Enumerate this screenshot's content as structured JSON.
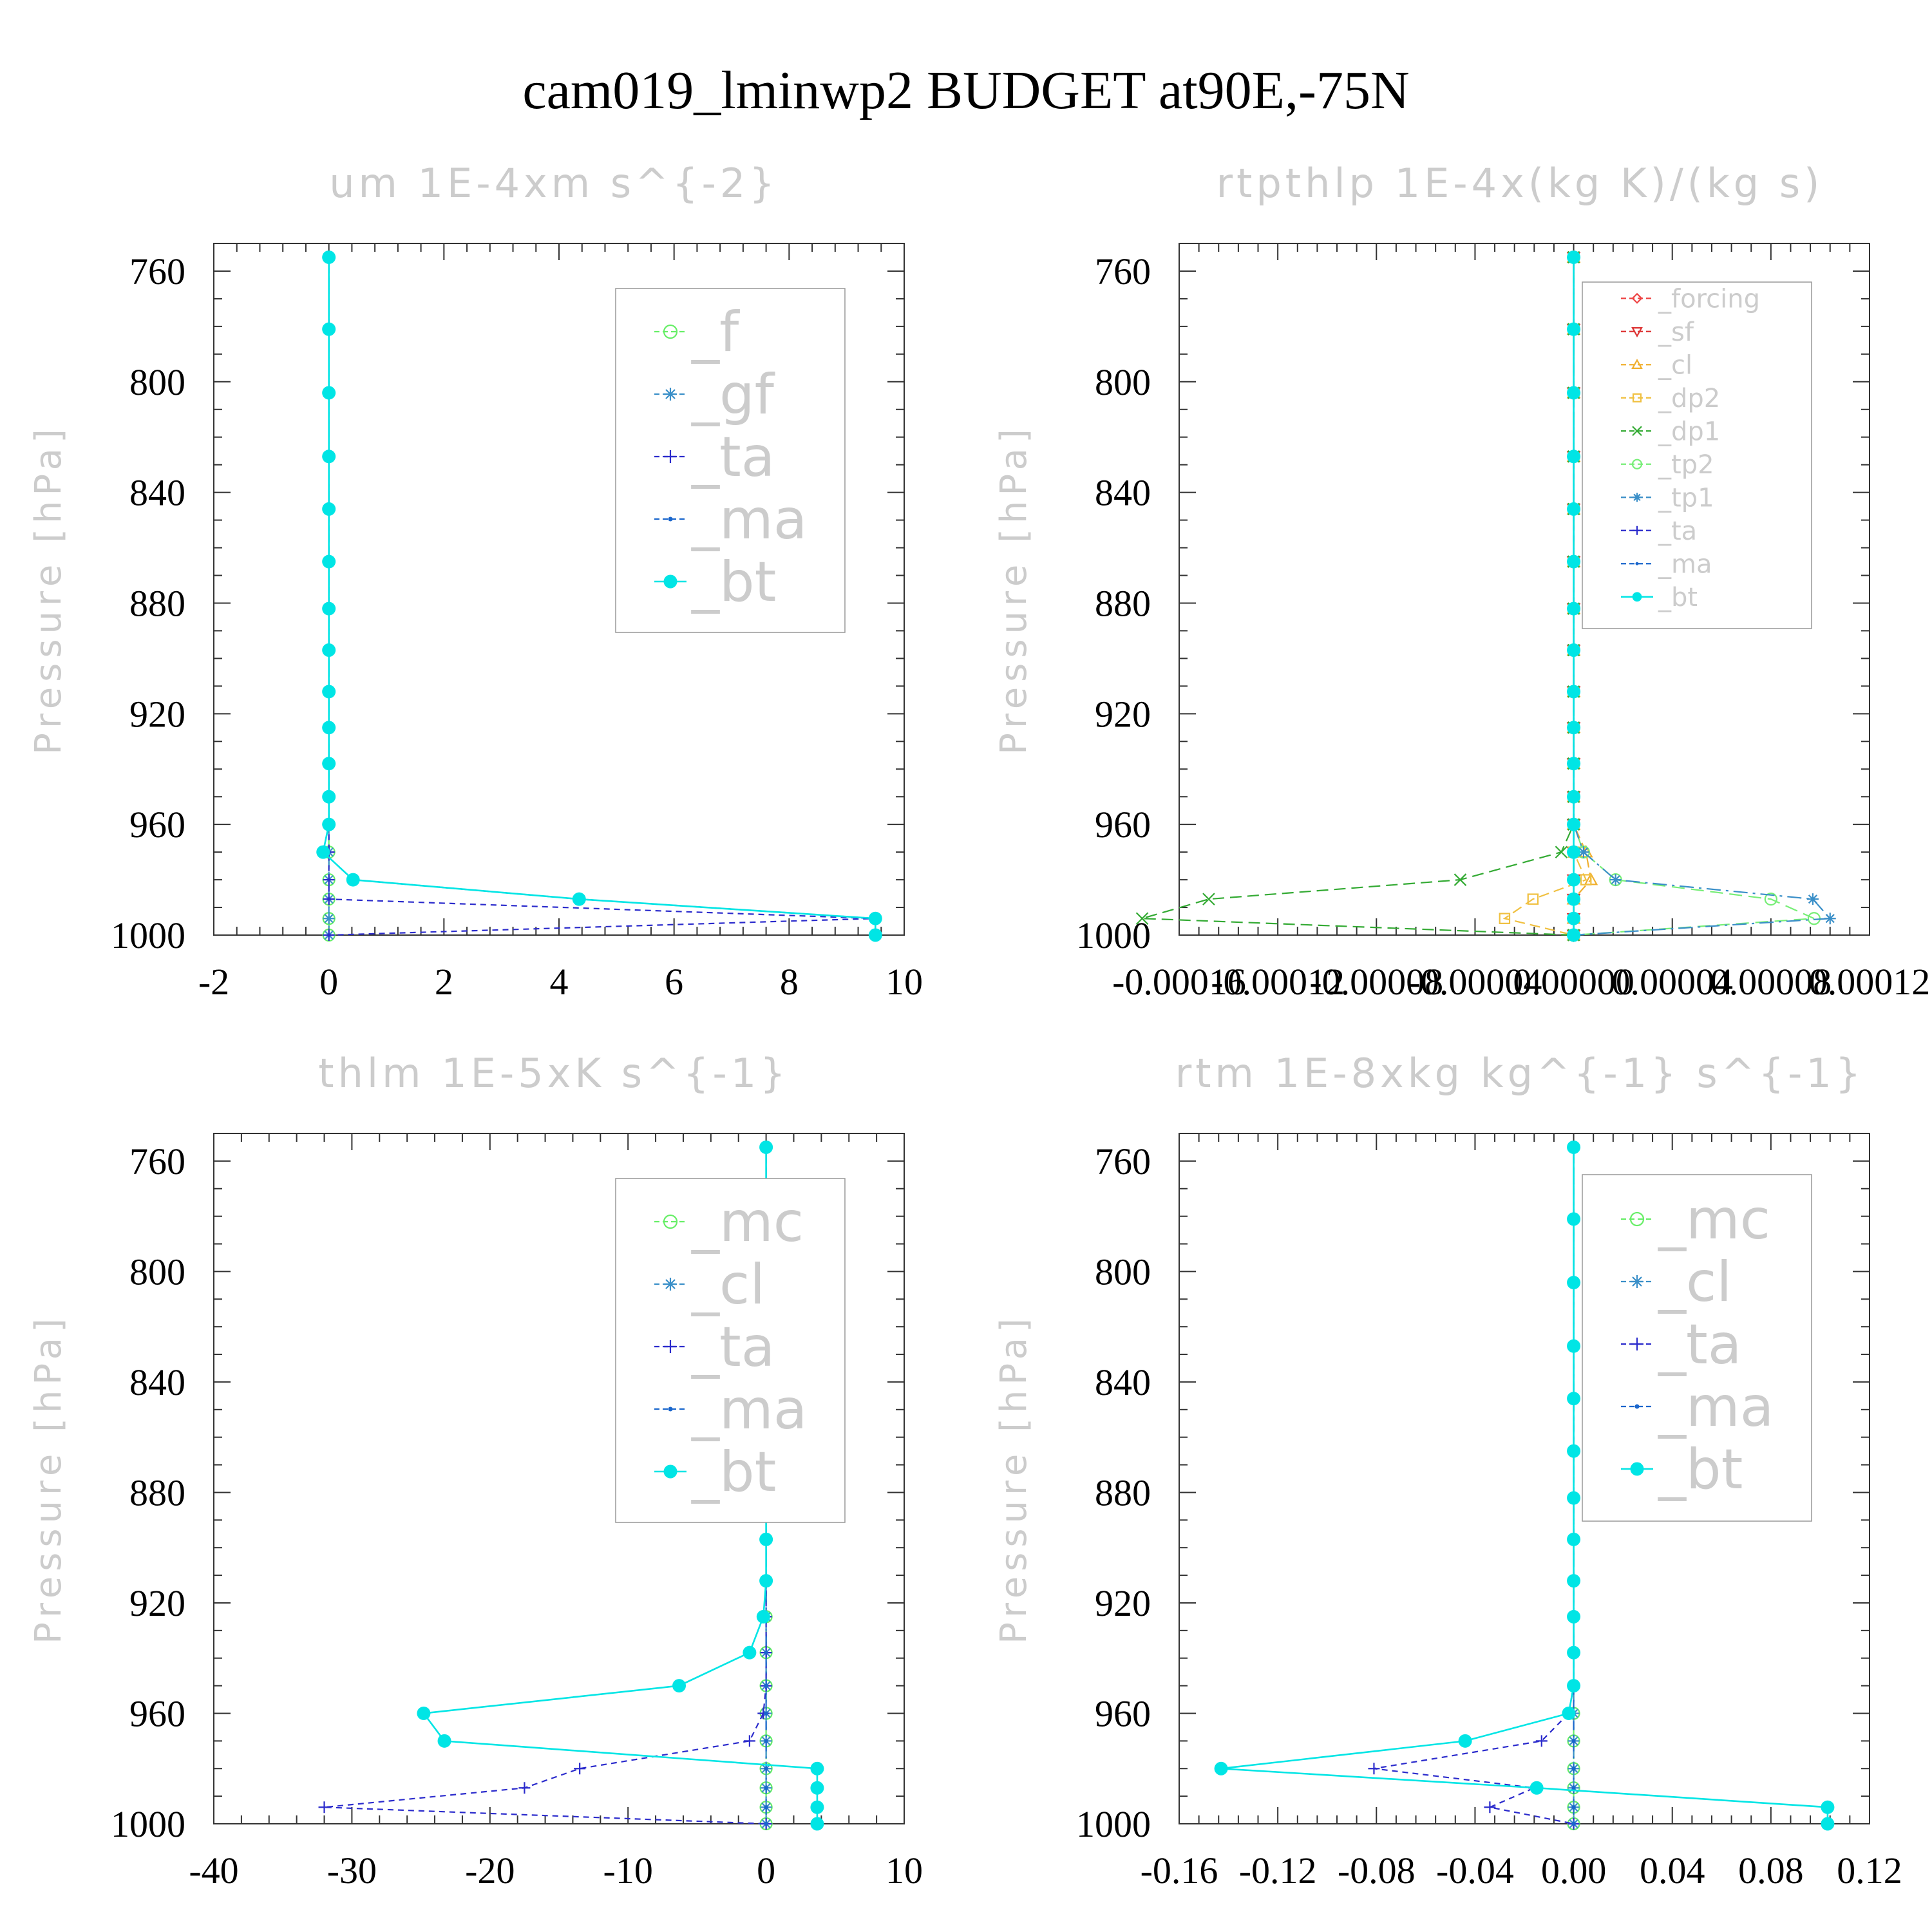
{
  "figure": {
    "title": "cam019_lminwp2  BUDGET at90E,-75N"
  },
  "chart_data": [
    {
      "type": "line",
      "title": "um   1E-4xm s^{-2}",
      "ylabel": "Pressure [hPa]",
      "xlabel": "",
      "xlim": [
        -2,
        10
      ],
      "ylim": [
        750,
        1000
      ],
      "y_inverted": true,
      "xticks": [
        "-2",
        "0",
        "2",
        "4",
        "6",
        "8",
        "10"
      ],
      "yticks": [
        "760",
        "800",
        "840",
        "880",
        "920",
        "960",
        "1000"
      ],
      "legend": "top-right",
      "levels": [
        755,
        781,
        804,
        827,
        846,
        865,
        882,
        897,
        912,
        925,
        938,
        950,
        960,
        970,
        980,
        987,
        994,
        1000
      ],
      "series": [
        {
          "name": "_f",
          "color": "#66ee66",
          "marker": "circle-open",
          "values": [
            0,
            0,
            0,
            0,
            0,
            0,
            0,
            0,
            0,
            0,
            0,
            0,
            0,
            0,
            0,
            0,
            0,
            0
          ]
        },
        {
          "name": "_gf",
          "color": "#3a8fc8",
          "marker": "star",
          "values": [
            0,
            0,
            0,
            0,
            0,
            0,
            0,
            0,
            0,
            0,
            0,
            0,
            0,
            0,
            0,
            0,
            0,
            0
          ]
        },
        {
          "name": "_ta",
          "color": "#2b2bcc",
          "marker": "plus",
          "values": [
            0,
            0,
            0,
            0,
            0,
            0,
            0,
            0,
            0,
            0,
            0,
            0,
            0,
            0,
            0,
            0,
            9.5,
            0
          ]
        },
        {
          "name": "_ma",
          "color": "#1a66cc",
          "marker": "dot",
          "values": [
            0,
            0,
            0,
            0,
            0,
            0,
            0,
            0,
            0,
            0,
            0,
            0,
            0,
            -0.1,
            0.42,
            4.35,
            9.5,
            9.5
          ]
        },
        {
          "name": "_bt",
          "color": "#00e5e5",
          "marker": "filled-circle",
          "values": [
            0,
            0,
            0,
            0,
            0,
            0,
            0,
            0,
            0,
            0,
            0,
            0,
            0,
            -0.1,
            0.42,
            4.35,
            9.5,
            9.5
          ]
        }
      ]
    },
    {
      "type": "line",
      "title": "rtpthlp   1E-4x(kg K)/(kg s)",
      "ylabel": "Pressure [hPa]",
      "xlabel": "",
      "xlim": [
        -0.00016,
        0.00012
      ],
      "ylim": [
        750,
        1000
      ],
      "y_inverted": true,
      "xticks": [
        "-0.00016",
        "-0.00012",
        "-0.00008",
        "-0.00004",
        "0.00000",
        "0.00004",
        "0.00008",
        "0.00012"
      ],
      "yticks": [
        "760",
        "800",
        "840",
        "880",
        "920",
        "960",
        "1000"
      ],
      "legend": "top-right",
      "levels": [
        755,
        781,
        804,
        827,
        846,
        865,
        882,
        897,
        912,
        925,
        938,
        950,
        960,
        970,
        980,
        987,
        994,
        1000
      ],
      "series": [
        {
          "name": "_forcing",
          "color": "#ee4444",
          "marker": "diamond-open",
          "values": [
            0,
            0,
            0,
            0,
            0,
            0,
            0,
            0,
            0,
            0,
            0,
            0,
            0,
            0,
            0,
            0,
            0,
            0
          ]
        },
        {
          "name": "_sf",
          "color": "#dd3333",
          "marker": "triangle-down",
          "values": [
            0,
            0,
            0,
            0,
            0,
            0,
            0,
            0,
            0,
            0,
            0,
            0,
            0,
            0,
            0,
            0,
            0,
            0
          ]
        },
        {
          "name": "_cl",
          "color": "#f0b030",
          "marker": "triangle-up",
          "values": [
            0,
            0,
            0,
            0,
            0,
            0,
            0,
            0,
            0,
            0,
            0,
            0,
            0,
            5e-06,
            7e-06,
            0,
            0,
            0
          ]
        },
        {
          "name": "_dp2",
          "color": "#f0c040",
          "marker": "square-open",
          "values": [
            0,
            0,
            0,
            0,
            0,
            0,
            0,
            0,
            0,
            0,
            0,
            0,
            0,
            0,
            5e-06,
            -1.65e-05,
            -2.8e-05,
            0
          ]
        },
        {
          "name": "_dp1",
          "color": "#33aa33",
          "marker": "x",
          "values": [
            0,
            0,
            0,
            0,
            0,
            0,
            0,
            0,
            0,
            0,
            0,
            0,
            0,
            -5e-06,
            -4.6e-05,
            -0.000148,
            -0.000175,
            0
          ]
        },
        {
          "name": "_tp2",
          "color": "#77ee77",
          "marker": "circle-open",
          "values": [
            0,
            0,
            0,
            0,
            0,
            0,
            0,
            0,
            0,
            0,
            0,
            0,
            0,
            4e-06,
            1.7e-05,
            8e-05,
            9.75e-05,
            0
          ]
        },
        {
          "name": "_tp1",
          "color": "#3a8fc8",
          "marker": "star",
          "values": [
            0,
            0,
            0,
            0,
            0,
            0,
            0,
            0,
            0,
            0,
            0,
            0,
            0,
            4e-06,
            1.7e-05,
            9.7e-05,
            0.000104,
            0
          ]
        },
        {
          "name": "_ta",
          "color": "#2b2bcc",
          "marker": "plus",
          "values": [
            0,
            0,
            0,
            0,
            0,
            0,
            0,
            0,
            0,
            0,
            0,
            0,
            0,
            0,
            0,
            0,
            0,
            0
          ]
        },
        {
          "name": "_ma",
          "color": "#1a66cc",
          "marker": "dot",
          "values": [
            0,
            0,
            0,
            0,
            0,
            0,
            0,
            0,
            0,
            0,
            0,
            0,
            0,
            0,
            0,
            0,
            0,
            0
          ]
        },
        {
          "name": "_bt",
          "color": "#00e5e5",
          "marker": "filled-circle",
          "values": [
            0,
            0,
            0,
            0,
            0,
            0,
            0,
            0,
            0,
            0,
            0,
            0,
            0,
            0,
            0,
            0,
            0,
            0
          ]
        }
      ]
    },
    {
      "type": "line",
      "title": "thlm   1E-5xK s^{-1}",
      "ylabel": "Pressure [hPa]",
      "xlabel": "",
      "xlim": [
        -40,
        10
      ],
      "ylim": [
        750,
        1000
      ],
      "y_inverted": true,
      "xticks": [
        "-40",
        "-30",
        "-20",
        "-10",
        "0",
        "10"
      ],
      "yticks": [
        "760",
        "800",
        "840",
        "880",
        "920",
        "960",
        "1000"
      ],
      "legend": "top-right",
      "levels": [
        755,
        781,
        804,
        827,
        846,
        865,
        882,
        897,
        912,
        925,
        938,
        950,
        960,
        970,
        980,
        987,
        994,
        1000
      ],
      "series": [
        {
          "name": "_mc",
          "color": "#66ee66",
          "marker": "circle-open",
          "values": [
            0,
            0,
            0,
            0,
            0,
            0,
            0,
            0,
            0,
            0,
            0,
            0,
            0,
            0,
            0,
            0,
            0,
            0
          ]
        },
        {
          "name": "_cl",
          "color": "#3a8fc8",
          "marker": "star",
          "values": [
            0,
            0,
            0,
            0,
            0,
            0,
            0,
            0,
            0,
            0,
            0,
            0,
            0,
            0,
            0,
            0,
            0,
            0
          ]
        },
        {
          "name": "_ta",
          "color": "#2b2bcc",
          "marker": "plus",
          "values": [
            0,
            0,
            0,
            0,
            0,
            0,
            0,
            0,
            0,
            0,
            0,
            0,
            -0.2,
            -1.2,
            -13.5,
            -17.5,
            -32,
            0
          ]
        },
        {
          "name": "_ma",
          "color": "#1a66cc",
          "marker": "dot",
          "values": [
            0,
            0,
            0,
            0,
            0,
            0,
            0,
            0,
            0,
            0,
            0,
            0,
            0,
            0,
            0,
            0,
            0,
            0
          ]
        },
        {
          "name": "_bt",
          "color": "#00e5e5",
          "marker": "filled-circle",
          "values": [
            0,
            0,
            0,
            0,
            0,
            0,
            0,
            0,
            0,
            -0.2,
            -1.2,
            -6.3,
            -24.8,
            -23.3,
            3.7,
            3.7,
            3.7,
            3.7
          ]
        }
      ]
    },
    {
      "type": "line",
      "title": "rtm   1E-8xkg kg^{-1} s^{-1}",
      "ylabel": "Pressure [hPa]",
      "xlabel": "",
      "xlim": [
        -0.16,
        0.12
      ],
      "ylim": [
        750,
        1000
      ],
      "y_inverted": true,
      "xticks": [
        "-0.16",
        "-0.12",
        "-0.08",
        "-0.04",
        "0.00",
        "0.04",
        "0.08",
        "0.12"
      ],
      "yticks": [
        "760",
        "800",
        "840",
        "880",
        "920",
        "960",
        "1000"
      ],
      "legend": "top-right",
      "levels": [
        755,
        781,
        804,
        827,
        846,
        865,
        882,
        897,
        912,
        925,
        938,
        950,
        960,
        970,
        980,
        987,
        994,
        1000
      ],
      "series": [
        {
          "name": "_mc",
          "color": "#66ee66",
          "marker": "circle-open",
          "values": [
            0,
            0,
            0,
            0,
            0,
            0,
            0,
            0,
            0,
            0,
            0,
            0,
            0,
            0,
            0,
            0,
            0,
            0
          ]
        },
        {
          "name": "_cl",
          "color": "#3a8fc8",
          "marker": "star",
          "values": [
            0,
            0,
            0,
            0,
            0,
            0,
            0,
            0,
            0,
            0,
            0,
            0,
            0,
            0,
            0,
            0,
            0,
            0
          ]
        },
        {
          "name": "_ta",
          "color": "#2b2bcc",
          "marker": "plus",
          "values": [
            0,
            0,
            0,
            0,
            0,
            0,
            0,
            0,
            0,
            0,
            0,
            0,
            -0.002,
            -0.013,
            -0.081,
            -0.016,
            -0.034,
            0
          ]
        },
        {
          "name": "_ma",
          "color": "#1a66cc",
          "marker": "dot",
          "values": [
            0,
            0,
            0,
            0,
            0,
            0,
            0,
            0,
            0,
            0,
            0,
            0,
            0,
            0,
            0,
            0,
            0,
            0
          ]
        },
        {
          "name": "_bt",
          "color": "#00e5e5",
          "marker": "filled-circle",
          "values": [
            0,
            0,
            0,
            0,
            0,
            0,
            0,
            0,
            0,
            0,
            0,
            0,
            -0.002,
            -0.044,
            -0.143,
            -0.015,
            0.103,
            0.103
          ]
        }
      ]
    }
  ]
}
